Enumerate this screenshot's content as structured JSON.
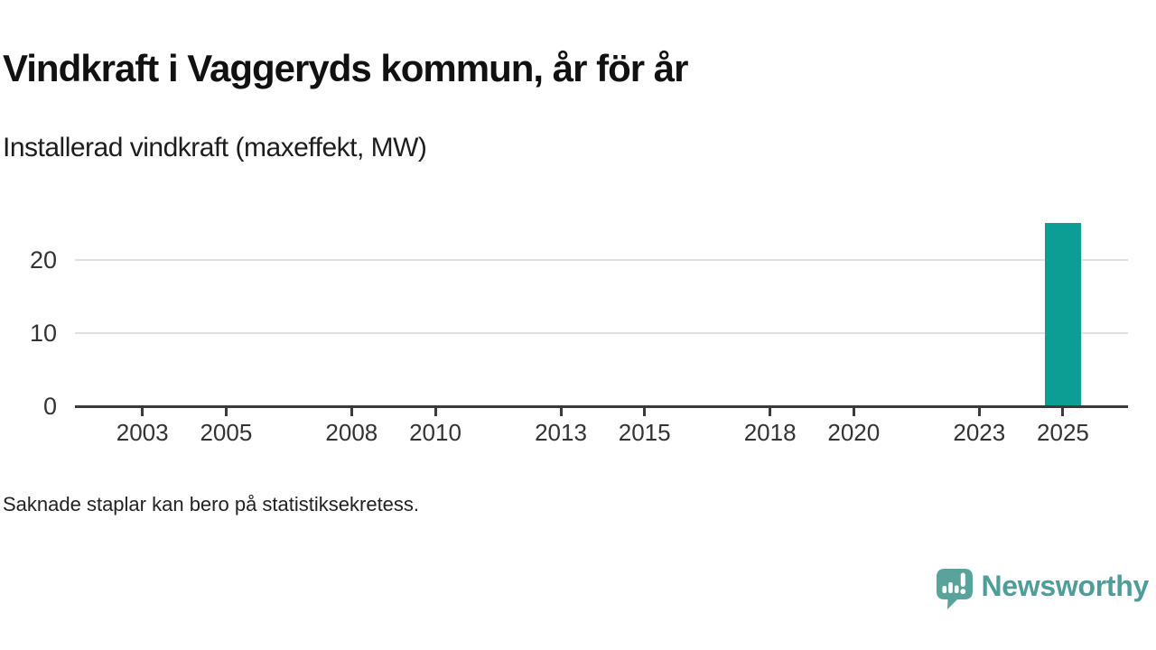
{
  "header": {
    "title": "Vindkraft i Vaggeryds kommun, år för år",
    "subtitle": "Installerad vindkraft (maxeffekt, MW)"
  },
  "footer": {
    "note": "Saknade staplar kan bero på statistiksekretess."
  },
  "brand": {
    "name": "Newsworthy",
    "logo_icon": "speech-bubble-bar-chart-exclamation"
  },
  "colors": {
    "bar": "#0c9d95",
    "axis": "#3a3a3a",
    "grid": "#e0e0e0",
    "title_text": "#111111",
    "body_text": "#222222",
    "brand_teal": "#4f9d99",
    "logo_teal": "#5aa39d"
  },
  "chart_data": {
    "type": "bar",
    "title": "Vindkraft i Vaggeryds kommun, år för år",
    "subtitle": "Installerad vindkraft (maxeffekt, MW)",
    "xlabel": "",
    "ylabel": "",
    "x_ticks": [
      2003,
      2005,
      2008,
      2010,
      2013,
      2015,
      2018,
      2020,
      2023,
      2025
    ],
    "x_range": [
      2001.4,
      2026.6
    ],
    "y_ticks": [
      0,
      10,
      20
    ],
    "y_gridlines": [
      10,
      20
    ],
    "ylim": [
      0,
      25.2
    ],
    "grid": "horizontal-only",
    "legend": "none",
    "series": [
      {
        "name": "Installerad vindkraft (maxeffekt, MW)",
        "points": [
          {
            "year": 2025,
            "value": 25
          }
        ]
      }
    ],
    "note": "Saknade staplar kan bero på statistiksekretess."
  }
}
